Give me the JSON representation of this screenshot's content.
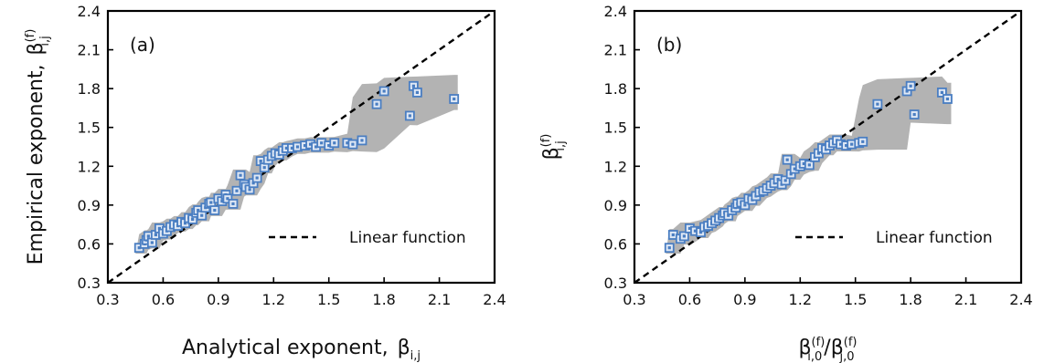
{
  "chart_data": [
    {
      "type": "scatter",
      "panel_label": "(a)",
      "xlabel": {
        "main": "Analytical exponent,",
        "symbol": "β",
        "subscript": "i,j"
      },
      "ylabel": {
        "main": "Empirical exponent,",
        "symbol": "β",
        "superscript": "(f)",
        "subscript": "i,j"
      },
      "xlim": [
        0.3,
        2.4
      ],
      "ylim": [
        0.3,
        2.4
      ],
      "xticks": [
        "0.3",
        "0.6",
        "0.9",
        "1.2",
        "1.5",
        "1.8",
        "2.1",
        "2.4"
      ],
      "yticks": [
        "0.3",
        "0.6",
        "0.9",
        "1.2",
        "1.5",
        "1.8",
        "2.1",
        "2.4"
      ],
      "legend": [
        {
          "label": "Linear function",
          "style": "dashed"
        }
      ],
      "legend_position": "bottom-right",
      "grid": false,
      "colors": {
        "points": "#4a7ec2",
        "band": "#b3b3b3",
        "line": "#000000"
      },
      "series": [
        {
          "marker": "square",
          "x": [
            0.47,
            0.5,
            0.51,
            0.52,
            0.54,
            0.56,
            0.58,
            0.6,
            0.62,
            0.64,
            0.66,
            0.68,
            0.7,
            0.72,
            0.74,
            0.76,
            0.78,
            0.79,
            0.81,
            0.83,
            0.85,
            0.86,
            0.88,
            0.9,
            0.92,
            0.94,
            0.95,
            0.98,
            1.0,
            1.02,
            1.04,
            1.05,
            1.07,
            1.09,
            1.11,
            1.13,
            1.15,
            1.17,
            1.19,
            1.21,
            1.23,
            1.25,
            1.27,
            1.3,
            1.33,
            1.37,
            1.4,
            1.43,
            1.46,
            1.5,
            1.53,
            1.6,
            1.63,
            1.68,
            1.76,
            1.8,
            1.94,
            1.96,
            1.98,
            2.18
          ],
          "y": [
            0.57,
            0.6,
            0.63,
            0.66,
            0.61,
            0.67,
            0.72,
            0.68,
            0.7,
            0.73,
            0.75,
            0.74,
            0.77,
            0.76,
            0.8,
            0.79,
            0.84,
            0.86,
            0.82,
            0.88,
            0.91,
            0.92,
            0.86,
            0.95,
            0.93,
            0.98,
            0.95,
            0.91,
            1.01,
            1.13,
            1.06,
            1.04,
            1.02,
            1.07,
            1.11,
            1.24,
            1.19,
            1.25,
            1.28,
            1.3,
            1.29,
            1.32,
            1.34,
            1.34,
            1.35,
            1.36,
            1.37,
            1.35,
            1.38,
            1.36,
            1.38,
            1.38,
            1.37,
            1.4,
            1.68,
            1.78,
            1.59,
            1.82,
            1.77,
            1.72
          ]
        }
      ]
    },
    {
      "type": "scatter",
      "panel_label": "(b)",
      "xlabel": {
        "symbol": "β",
        "superscript": "(f)",
        "subscript": "i,0",
        "slash": "/",
        "symbol2": "β",
        "superscript2": "(f)",
        "subscript2": "j,0"
      },
      "ylabel": {
        "symbol": "β",
        "superscript": "(f)",
        "subscript": "i,j"
      },
      "xlim": [
        0.3,
        2.4
      ],
      "ylim": [
        0.3,
        2.4
      ],
      "xticks": [
        "0.3",
        "0.6",
        "0.9",
        "1.2",
        "1.5",
        "1.8",
        "2.1",
        "2.4"
      ],
      "yticks": [
        "0.3",
        "0.6",
        "0.9",
        "1.2",
        "1.5",
        "1.8",
        "2.1",
        "2.4"
      ],
      "legend": [
        {
          "label": "Linear function",
          "style": "dashed"
        }
      ],
      "legend_position": "bottom-right",
      "grid": false,
      "colors": {
        "points": "#4a7ec2",
        "band": "#b3b3b3",
        "line": "#000000"
      },
      "series": [
        {
          "marker": "square",
          "x": [
            0.49,
            0.51,
            0.55,
            0.57,
            0.6,
            0.63,
            0.66,
            0.68,
            0.7,
            0.72,
            0.74,
            0.76,
            0.78,
            0.79,
            0.81,
            0.83,
            0.85,
            0.86,
            0.88,
            0.9,
            0.92,
            0.94,
            0.96,
            0.98,
            1.0,
            1.02,
            1.04,
            1.06,
            1.08,
            1.1,
            1.12,
            1.13,
            1.15,
            1.17,
            1.2,
            1.22,
            1.25,
            1.28,
            1.3,
            1.32,
            1.34,
            1.36,
            1.38,
            1.4,
            1.42,
            1.45,
            1.48,
            1.52,
            1.54,
            1.62,
            1.78,
            1.8,
            1.82,
            1.97,
            2.0
          ],
          "y": [
            0.57,
            0.67,
            0.64,
            0.66,
            0.72,
            0.7,
            0.69,
            0.73,
            0.74,
            0.76,
            0.78,
            0.8,
            0.82,
            0.84,
            0.82,
            0.86,
            0.88,
            0.91,
            0.92,
            0.9,
            0.95,
            0.94,
            0.97,
            1.0,
            1.01,
            1.03,
            1.05,
            1.07,
            1.1,
            1.06,
            1.09,
            1.25,
            1.14,
            1.18,
            1.2,
            1.22,
            1.21,
            1.27,
            1.3,
            1.34,
            1.33,
            1.36,
            1.38,
            1.4,
            1.37,
            1.36,
            1.37,
            1.38,
            1.39,
            1.68,
            1.78,
            1.82,
            1.6,
            1.77,
            1.72
          ]
        }
      ]
    }
  ]
}
